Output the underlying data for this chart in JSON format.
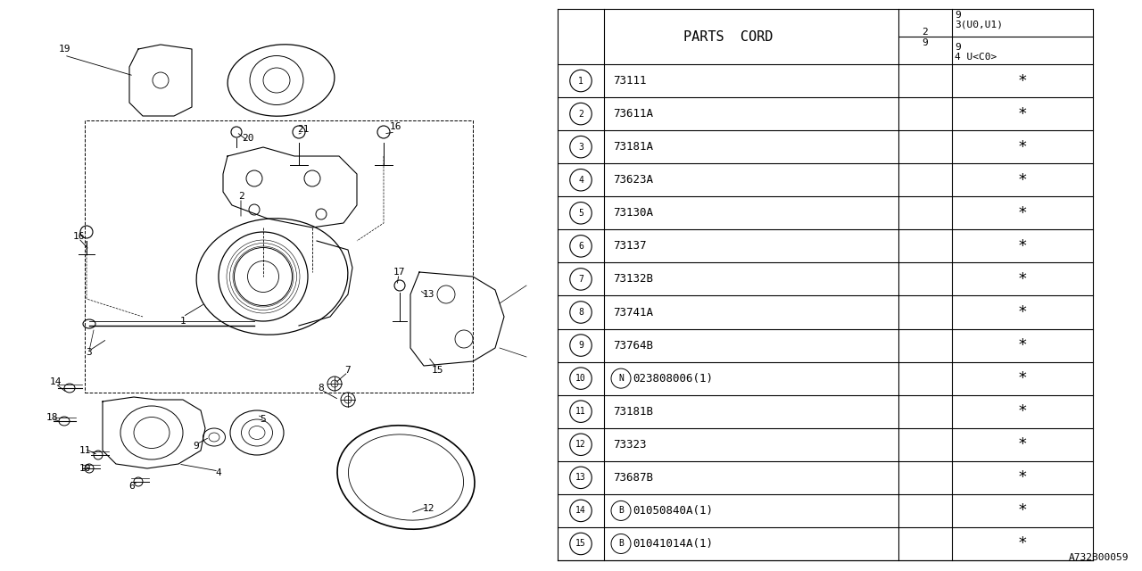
{
  "bg_color": "#ffffff",
  "font_color": "#000000",
  "line_color": "#000000",
  "table_font": "monospace",
  "footnote": "A732B00059",
  "parts": [
    {
      "num": "1",
      "prefix": "",
      "code": "73111"
    },
    {
      "num": "2",
      "prefix": "",
      "code": "73611A"
    },
    {
      "num": "3",
      "prefix": "",
      "code": "73181A"
    },
    {
      "num": "4",
      "prefix": "",
      "code": "73623A"
    },
    {
      "num": "5",
      "prefix": "",
      "code": "73130A"
    },
    {
      "num": "6",
      "prefix": "",
      "code": "73137"
    },
    {
      "num": "7",
      "prefix": "",
      "code": "73132B"
    },
    {
      "num": "8",
      "prefix": "",
      "code": "73741A"
    },
    {
      "num": "9",
      "prefix": "",
      "code": "73764B"
    },
    {
      "num": "10",
      "prefix": "N",
      "code": "023808006(1)"
    },
    {
      "num": "11",
      "prefix": "",
      "code": "73181B"
    },
    {
      "num": "12",
      "prefix": "",
      "code": "73323"
    },
    {
      "num": "13",
      "prefix": "",
      "code": "73687B"
    },
    {
      "num": "14",
      "prefix": "B",
      "code": "01050840A(1)"
    },
    {
      "num": "15",
      "prefix": "B",
      "code": "01041014A(1)"
    }
  ]
}
